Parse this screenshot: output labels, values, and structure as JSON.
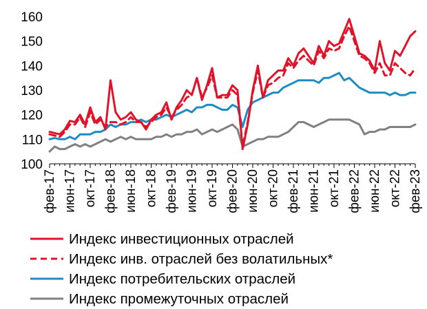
{
  "chart_data": {
    "type": "line",
    "title": "",
    "xlabel": "",
    "ylabel": "",
    "ylim": [
      100,
      160
    ],
    "yticks": [
      100,
      110,
      120,
      130,
      140,
      150,
      160
    ],
    "grid": false,
    "legend_position": "bottom",
    "x_tick_labels": [
      "фев-17",
      "июн-17",
      "окт-17",
      "фев-18",
      "июн-18",
      "окт-18",
      "фев-19",
      "июн-19",
      "окт-19",
      "фев-20",
      "июн-20",
      "окт-20",
      "фев-21",
      "июн-21",
      "окт-21",
      "фев-22",
      "июн-22",
      "окт-22",
      "фев-23"
    ],
    "months": [
      "фев-17",
      "мар-17",
      "апр-17",
      "май-17",
      "июн-17",
      "июл-17",
      "авг-17",
      "сен-17",
      "окт-17",
      "ноя-17",
      "дек-17",
      "янв-18",
      "фев-18",
      "мар-18",
      "апр-18",
      "май-18",
      "июн-18",
      "июл-18",
      "авг-18",
      "сен-18",
      "окт-18",
      "ноя-18",
      "дек-18",
      "янв-19",
      "фев-19",
      "мар-19",
      "апр-19",
      "май-19",
      "июн-19",
      "июл-19",
      "авг-19",
      "сен-19",
      "окт-19",
      "ноя-19",
      "дек-19",
      "янв-20",
      "фев-20",
      "мар-20",
      "апр-20",
      "май-20",
      "июн-20",
      "июл-20",
      "авг-20",
      "сен-20",
      "окт-20",
      "ноя-20",
      "дек-20",
      "янв-21",
      "фев-21",
      "мар-21",
      "апр-21",
      "май-21",
      "июн-21",
      "июл-21",
      "авг-21",
      "сен-21",
      "окт-21",
      "ноя-21",
      "дек-21",
      "янв-22",
      "фев-22",
      "мар-22",
      "апр-22",
      "май-22",
      "июн-22",
      "июл-22",
      "авг-22",
      "сен-22",
      "окт-22",
      "ноя-22",
      "дек-22",
      "янв-23",
      "фев-23"
    ],
    "series": [
      {
        "name": "Индекс инвестиционных отраслей",
        "color": "#e0132b",
        "dash": "solid",
        "values": [
          113,
          112.5,
          112,
          114,
          117.5,
          117,
          120,
          116,
          123,
          117,
          119,
          114,
          134,
          121,
          118,
          119,
          121,
          118,
          117,
          114,
          118,
          120,
          121,
          125,
          118,
          123,
          126,
          130,
          128,
          135,
          126,
          132,
          139,
          127,
          128,
          128,
          132,
          130,
          106,
          116,
          130,
          140,
          127,
          134,
          136,
          138,
          138,
          143,
          140,
          145,
          147,
          144,
          141,
          148,
          144,
          150,
          148,
          149,
          154,
          159,
          152,
          145,
          144,
          142,
          138,
          150,
          141,
          138,
          146,
          144,
          148,
          152,
          154
        ]
      },
      {
        "name": "Индекс инв. отраслей без волатильных*",
        "color": "#e0132b",
        "dash": "dashed",
        "values": [
          112,
          111.5,
          111,
          113,
          116,
          116,
          119,
          115,
          121,
          116,
          118,
          115,
          117,
          117,
          116,
          117,
          119,
          117,
          117,
          115,
          117,
          119,
          120,
          123,
          119,
          122,
          124,
          127,
          128,
          135,
          127,
          131,
          136,
          127,
          127,
          127,
          130,
          128,
          107,
          117,
          129,
          138,
          127,
          132,
          133,
          135,
          136,
          141,
          139,
          142,
          144,
          142,
          140,
          146,
          143,
          147,
          146,
          147,
          152,
          156,
          150,
          144,
          143,
          141,
          137,
          141,
          136,
          136,
          141,
          139,
          137,
          136,
          139
        ]
      },
      {
        "name": "Индекс потребительских отраслей",
        "color": "#1e8bc3",
        "dash": "solid",
        "values": [
          110,
          110.5,
          110,
          110,
          111,
          110,
          112,
          112,
          112,
          113,
          113,
          114,
          116,
          115,
          116,
          116,
          117,
          117,
          118,
          117,
          118,
          118,
          119,
          120,
          119,
          120,
          121,
          122,
          121,
          123,
          123,
          124,
          124,
          123,
          122,
          122,
          124,
          123,
          115,
          122,
          125,
          126,
          127,
          128,
          129,
          129,
          131,
          132,
          133,
          134,
          134,
          134,
          134,
          133,
          135,
          135,
          136,
          137,
          134,
          135,
          133,
          131,
          130,
          129,
          129,
          129,
          129,
          128,
          129,
          128,
          128,
          129,
          129
        ]
      },
      {
        "name": "Индекс промежуточных отраслей",
        "color": "#808080",
        "dash": "solid",
        "values": [
          105,
          107,
          106,
          106,
          107,
          108,
          107,
          108,
          107,
          108,
          109,
          110,
          109,
          110,
          111,
          110,
          111,
          110,
          110,
          110,
          110,
          111,
          111,
          112,
          111,
          112,
          112,
          113,
          113,
          114,
          112,
          113,
          114,
          113,
          114,
          115,
          116,
          114,
          107,
          108,
          109,
          110,
          110,
          111,
          111,
          111,
          112,
          113,
          115,
          117,
          117,
          116,
          115,
          116,
          117,
          118,
          118,
          118,
          118,
          118,
          117,
          116,
          112,
          113,
          113,
          114,
          114,
          115,
          115,
          115,
          115,
          115,
          116
        ]
      }
    ]
  }
}
